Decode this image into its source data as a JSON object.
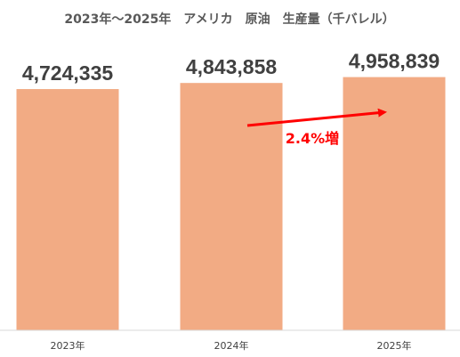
{
  "chart_data": {
    "type": "bar",
    "title": "2023年～2025年　アメリカ　原油　生産量（千バレル）",
    "categories": [
      "2023年",
      "2024年",
      "2025年"
    ],
    "values": [
      4724335,
      4843858,
      4958839
    ],
    "value_labels": [
      "4,724,335",
      "4,843,858",
      "4,958,839"
    ],
    "xlabel": "",
    "ylabel": "",
    "ylim": [
      0,
      5440000
    ],
    "grid": false,
    "legend": "none",
    "bar_color": "#F2AB84",
    "annotation": {
      "text": "2.4%増",
      "color": "#FF0000",
      "arrow": "from 2024年 to 2025年"
    }
  }
}
